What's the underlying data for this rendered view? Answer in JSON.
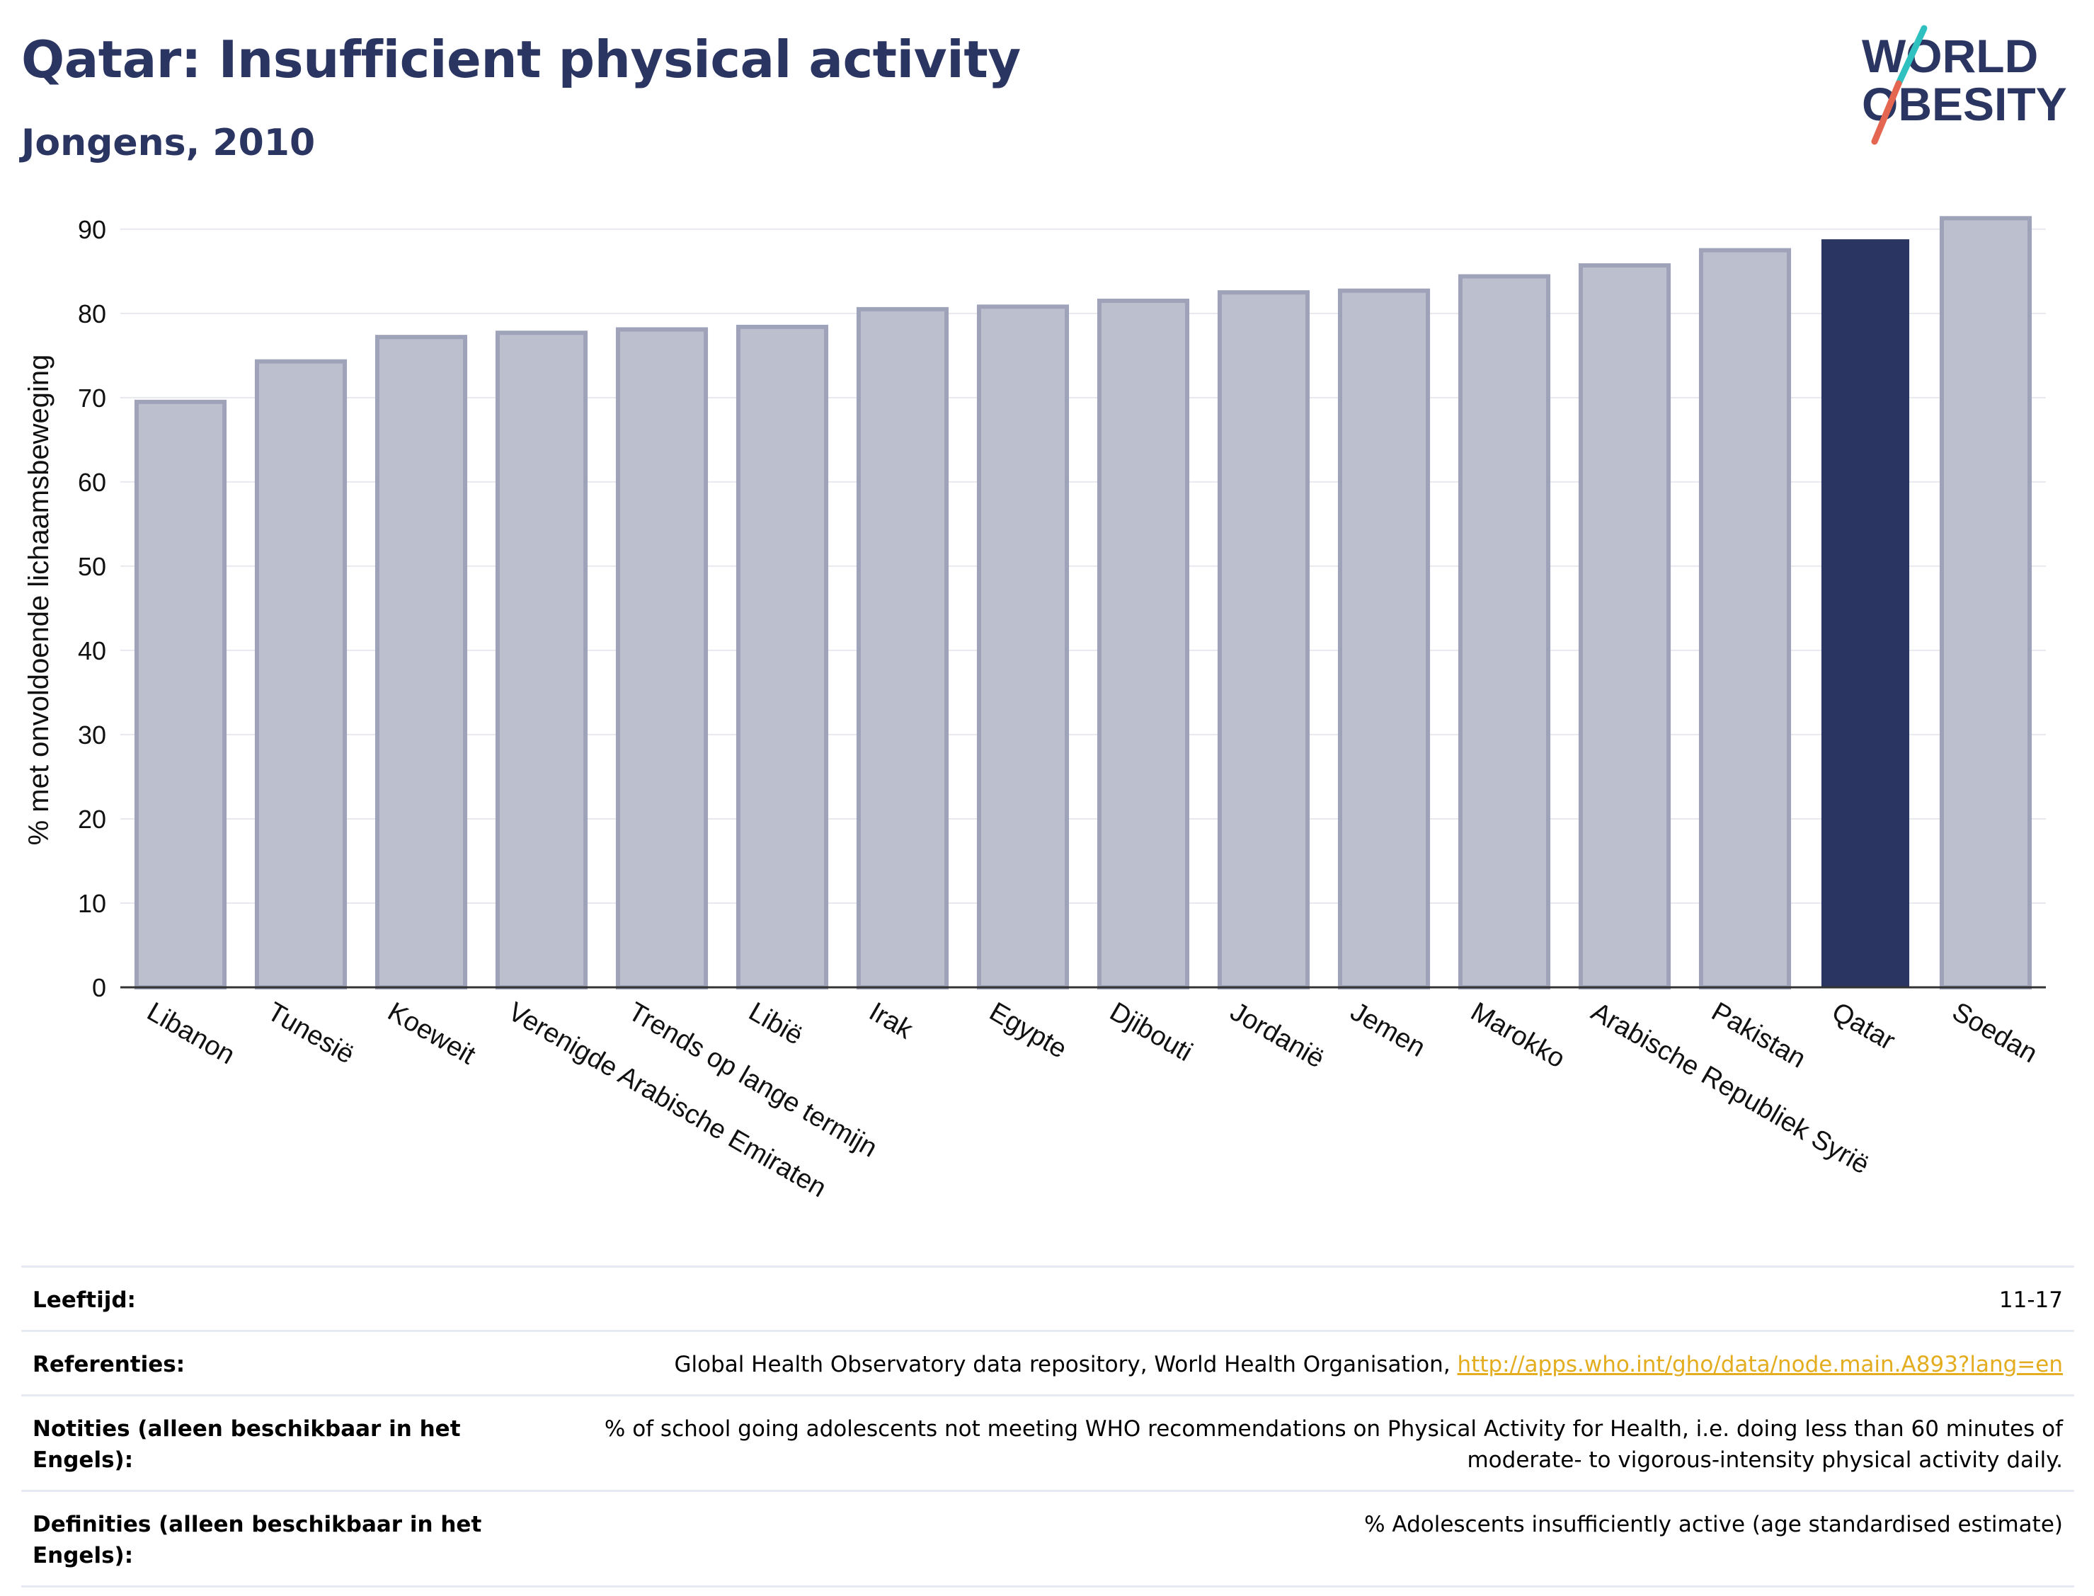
{
  "header": {
    "title": "Qatar: Insufficient physical activity",
    "subtitle": "Jongens, 2010"
  },
  "logo": {
    "line1": "WORLD",
    "line2": "OBESITY",
    "colors": {
      "text": "#2b3561",
      "teal": "#2fc1c0",
      "red": "#e56650"
    }
  },
  "chart_data": {
    "type": "bar",
    "ylabel": "% met onvoldoende lichaamsbeweging",
    "xlabel": "",
    "ylim": [
      0,
      92
    ],
    "yticks": [
      0,
      10,
      20,
      30,
      40,
      50,
      60,
      70,
      80,
      90
    ],
    "grid": true,
    "categories": [
      "Libanon",
      "Tunesië",
      "Koeweit",
      "Verenigde Arabische Emiraten",
      "Trends op lange termijn",
      "Libië",
      "Irak",
      "Egypte",
      "Djibouti",
      "Jordanië",
      "Jemen",
      "Marokko",
      "Arabische Republiek Syrië",
      "Pakistan",
      "Qatar",
      "Soedan"
    ],
    "values": [
      69.5,
      74.3,
      77.2,
      77.7,
      78.1,
      78.4,
      80.5,
      80.8,
      81.5,
      82.5,
      82.7,
      84.4,
      85.7,
      87.5,
      88.8,
      91.3
    ],
    "highlight": "Qatar",
    "colors": {
      "bar": "#bbbfce",
      "bar_edge": "#9ea3ba",
      "highlight": "#2b3561"
    }
  },
  "meta": {
    "age_label": "Leeftijd:",
    "age_value": "11-17",
    "refs_label": "Referenties:",
    "refs_text": "Global Health Observatory data repository, World Health Organisation, ",
    "refs_link": "http://apps.who.int/gho/data/node.main.A893?lang=en",
    "notes_label": "Notities (alleen beschikbaar in het Engels):",
    "notes_value": "% of school going adolescents not meeting WHO recommendations on Physical Activity for Health, i.e. doing less than 60 minutes of moderate- to vigorous-intensity physical activity daily.",
    "defs_label": "Definities (alleen beschikbaar in het Engels):",
    "defs_value": "% Adolescents insufficiently active (age standardised estimate)"
  }
}
